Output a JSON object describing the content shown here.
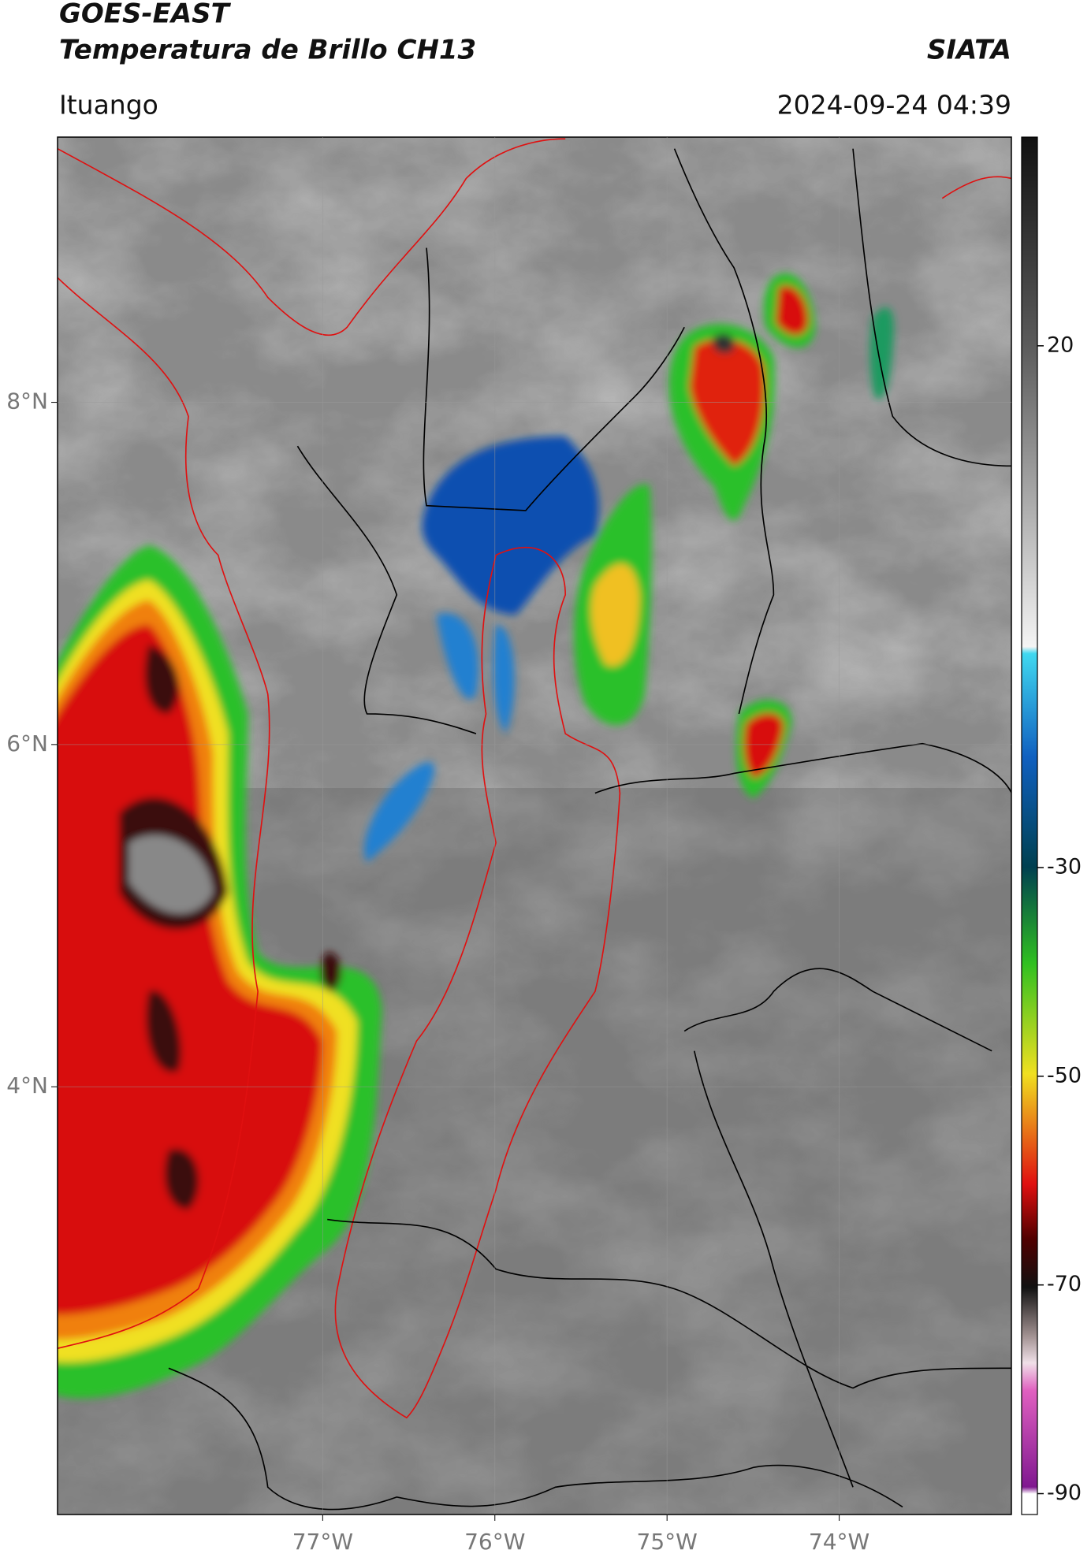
{
  "header": {
    "satellite": "GOES-EAST",
    "product": "Temperatura de Brillo CH13",
    "agency": "SIATA",
    "region": "Ituango",
    "datetime": "2024-09-24 04:39"
  },
  "map": {
    "xlim": [
      -78.54,
      -73.0
    ],
    "ylim": [
      1.5,
      9.55
    ],
    "xticks": [
      {
        "value": -77,
        "label": "77°W"
      },
      {
        "value": -76,
        "label": "76°W"
      },
      {
        "value": -75,
        "label": "75°W"
      },
      {
        "value": -74,
        "label": "74°W"
      }
    ],
    "yticks": [
      {
        "value": 8,
        "label": "8°N"
      },
      {
        "value": 6,
        "label": "6°N"
      },
      {
        "value": 4,
        "label": "4°N"
      }
    ],
    "grid": true
  },
  "colorbar": {
    "lim": [
      -92,
      40
    ],
    "ticks": [
      20,
      -30,
      -50,
      -70,
      -90
    ]
  }
}
